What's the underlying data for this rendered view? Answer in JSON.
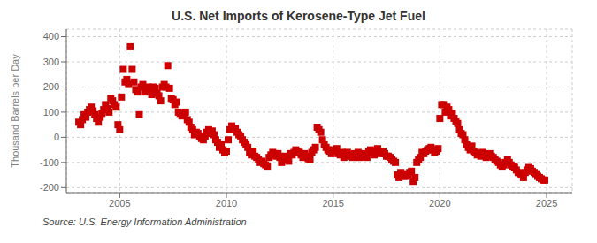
{
  "chart_data": {
    "type": "scatter",
    "title": "U.S. Net Imports of Kerosene-Type Jet Fuel",
    "ylabel": "Thousand Barrels per Day",
    "annotations": [
      "Source: U.S. Energy Information Administration"
    ],
    "color": "#cc0000",
    "marker": "square",
    "grid": true,
    "xlim": [
      2002.5,
      2026.2
    ],
    "ylim": [
      -220,
      430
    ],
    "xticks": [
      2005,
      2010,
      2015,
      2020,
      2025
    ],
    "yticks": [
      -200,
      -100,
      0,
      100,
      200,
      300,
      400
    ],
    "x": [
      2003.083,
      2003.167,
      2003.25,
      2003.333,
      2003.417,
      2003.5,
      2003.583,
      2003.667,
      2003.75,
      2003.833,
      2003.917,
      2004.0,
      2004.083,
      2004.167,
      2004.25,
      2004.333,
      2004.417,
      2004.5,
      2004.583,
      2004.667,
      2004.75,
      2004.833,
      2004.917,
      2005.0,
      2005.083,
      2005.167,
      2005.25,
      2005.333,
      2005.417,
      2005.5,
      2005.583,
      2005.667,
      2005.75,
      2005.833,
      2005.917,
      2006.0,
      2006.083,
      2006.167,
      2006.25,
      2006.333,
      2006.417,
      2006.5,
      2006.583,
      2006.667,
      2006.75,
      2006.833,
      2006.917,
      2007.0,
      2007.083,
      2007.167,
      2007.25,
      2007.333,
      2007.417,
      2007.5,
      2007.583,
      2007.667,
      2007.75,
      2007.833,
      2007.917,
      2008.0,
      2008.083,
      2008.167,
      2008.25,
      2008.333,
      2008.417,
      2008.5,
      2008.583,
      2008.667,
      2008.75,
      2008.833,
      2008.917,
      2009.0,
      2009.083,
      2009.167,
      2009.25,
      2009.333,
      2009.417,
      2009.5,
      2009.583,
      2009.667,
      2009.75,
      2009.833,
      2009.917,
      2010.0,
      2010.083,
      2010.167,
      2010.25,
      2010.333,
      2010.417,
      2010.5,
      2010.583,
      2010.667,
      2010.75,
      2010.833,
      2010.917,
      2011.0,
      2011.083,
      2011.167,
      2011.25,
      2011.333,
      2011.417,
      2011.5,
      2011.583,
      2011.667,
      2011.75,
      2011.833,
      2011.917,
      2012.0,
      2012.083,
      2012.167,
      2012.25,
      2012.333,
      2012.417,
      2012.5,
      2012.583,
      2012.667,
      2012.75,
      2012.833,
      2012.917,
      2013.0,
      2013.083,
      2013.167,
      2013.25,
      2013.333,
      2013.417,
      2013.5,
      2013.583,
      2013.667,
      2013.75,
      2013.833,
      2013.917,
      2014.0,
      2014.083,
      2014.167,
      2014.25,
      2014.333,
      2014.417,
      2014.5,
      2014.583,
      2014.667,
      2014.75,
      2014.833,
      2014.917,
      2015.0,
      2015.083,
      2015.167,
      2015.25,
      2015.333,
      2015.417,
      2015.5,
      2015.583,
      2015.667,
      2015.75,
      2015.833,
      2015.917,
      2016.0,
      2016.083,
      2016.167,
      2016.25,
      2016.333,
      2016.417,
      2016.5,
      2016.583,
      2016.667,
      2016.75,
      2016.833,
      2016.917,
      2017.0,
      2017.083,
      2017.167,
      2017.25,
      2017.333,
      2017.417,
      2017.5,
      2017.583,
      2017.667,
      2017.75,
      2017.833,
      2017.917,
      2018.0,
      2018.083,
      2018.167,
      2018.25,
      2018.333,
      2018.417,
      2018.5,
      2018.583,
      2018.667,
      2018.75,
      2018.833,
      2018.917,
      2019.0,
      2019.083,
      2019.167,
      2019.25,
      2019.333,
      2019.417,
      2019.5,
      2019.583,
      2019.667,
      2019.75,
      2019.833,
      2019.917,
      2020.0,
      2020.083,
      2020.167,
      2020.25,
      2020.333,
      2020.417,
      2020.5,
      2020.583,
      2020.667,
      2020.75,
      2020.833,
      2020.917,
      2021.0,
      2021.083,
      2021.167,
      2021.25,
      2021.333,
      2021.417,
      2021.5,
      2021.583,
      2021.667,
      2021.75,
      2021.833,
      2021.917,
      2022.0,
      2022.083,
      2022.167,
      2022.25,
      2022.333,
      2022.417,
      2022.5,
      2022.583,
      2022.667,
      2022.75,
      2022.833,
      2022.917,
      2023.0,
      2023.083,
      2023.167,
      2023.25,
      2023.333,
      2023.417,
      2023.5,
      2023.583,
      2023.667,
      2023.75,
      2023.833,
      2023.917,
      2024.0,
      2024.083,
      2024.167,
      2024.25,
      2024.333,
      2024.417,
      2024.5,
      2024.583,
      2024.667,
      2024.75,
      2024.833,
      2024.917
    ],
    "values": [
      60,
      50,
      70,
      90,
      80,
      100,
      110,
      120,
      105,
      90,
      75,
      60,
      80,
      95,
      110,
      130,
      115,
      100,
      155,
      145,
      130,
      120,
      50,
      30,
      160,
      270,
      220,
      230,
      210,
      360,
      270,
      220,
      190,
      180,
      90,
      200,
      210,
      180,
      195,
      200,
      185,
      170,
      200,
      195,
      175,
      165,
      145,
      200,
      210,
      200,
      285,
      195,
      155,
      150,
      130,
      140,
      100,
      95,
      85,
      90,
      100,
      70,
      60,
      40,
      30,
      10,
      20,
      15,
      5,
      -5,
      -10,
      5,
      20,
      30,
      15,
      25,
      10,
      -10,
      -20,
      -40,
      -30,
      -50,
      -60,
      -55,
      -10,
      30,
      45,
      30,
      35,
      20,
      10,
      5,
      -10,
      -20,
      -30,
      -40,
      -60,
      -70,
      -55,
      -75,
      -80,
      -90,
      -100,
      -95,
      -105,
      -110,
      -115,
      -80,
      -70,
      -60,
      -65,
      -75,
      -65,
      -80,
      -100,
      -75,
      -85,
      -90,
      -95,
      -65,
      -70,
      -60,
      -50,
      -55,
      -60,
      -70,
      -80,
      -65,
      -75,
      -85,
      -90,
      -60,
      -50,
      -40,
      40,
      30,
      20,
      -10,
      -30,
      -40,
      -50,
      -55,
      -65,
      -50,
      -55,
      -45,
      -65,
      -70,
      -60,
      -80,
      -75,
      -60,
      -70,
      -75,
      -80,
      -65,
      -70,
      -60,
      -80,
      -75,
      -65,
      -70,
      -80,
      -55,
      -50,
      -60,
      -70,
      -55,
      -45,
      -65,
      -60,
      -55,
      -65,
      -75,
      -75,
      -80,
      -90,
      -95,
      -100,
      -150,
      -160,
      -140,
      -145,
      -155,
      -155,
      -150,
      -140,
      -135,
      -175,
      -160,
      -100,
      -90,
      -80,
      -60,
      -65,
      -55,
      -50,
      -45,
      -40,
      -50,
      -60,
      -55,
      -45,
      75,
      130,
      130,
      100,
      120,
      110,
      85,
      95,
      75,
      65,
      55,
      30,
      15,
      10,
      -10,
      -30,
      -40,
      -50,
      -35,
      -55,
      -60,
      -70,
      -65,
      -75,
      -60,
      -70,
      -80,
      -75,
      -65,
      -75,
      -80,
      -90,
      -95,
      -100,
      -110,
      -115,
      -110,
      -100,
      -90,
      -100,
      -110,
      -115,
      -120,
      -130,
      -140,
      -145,
      -150,
      -160,
      -140,
      -130,
      -120,
      -125,
      -135,
      -140,
      -145,
      -155,
      -160,
      -165,
      -170,
      -170
    ]
  }
}
